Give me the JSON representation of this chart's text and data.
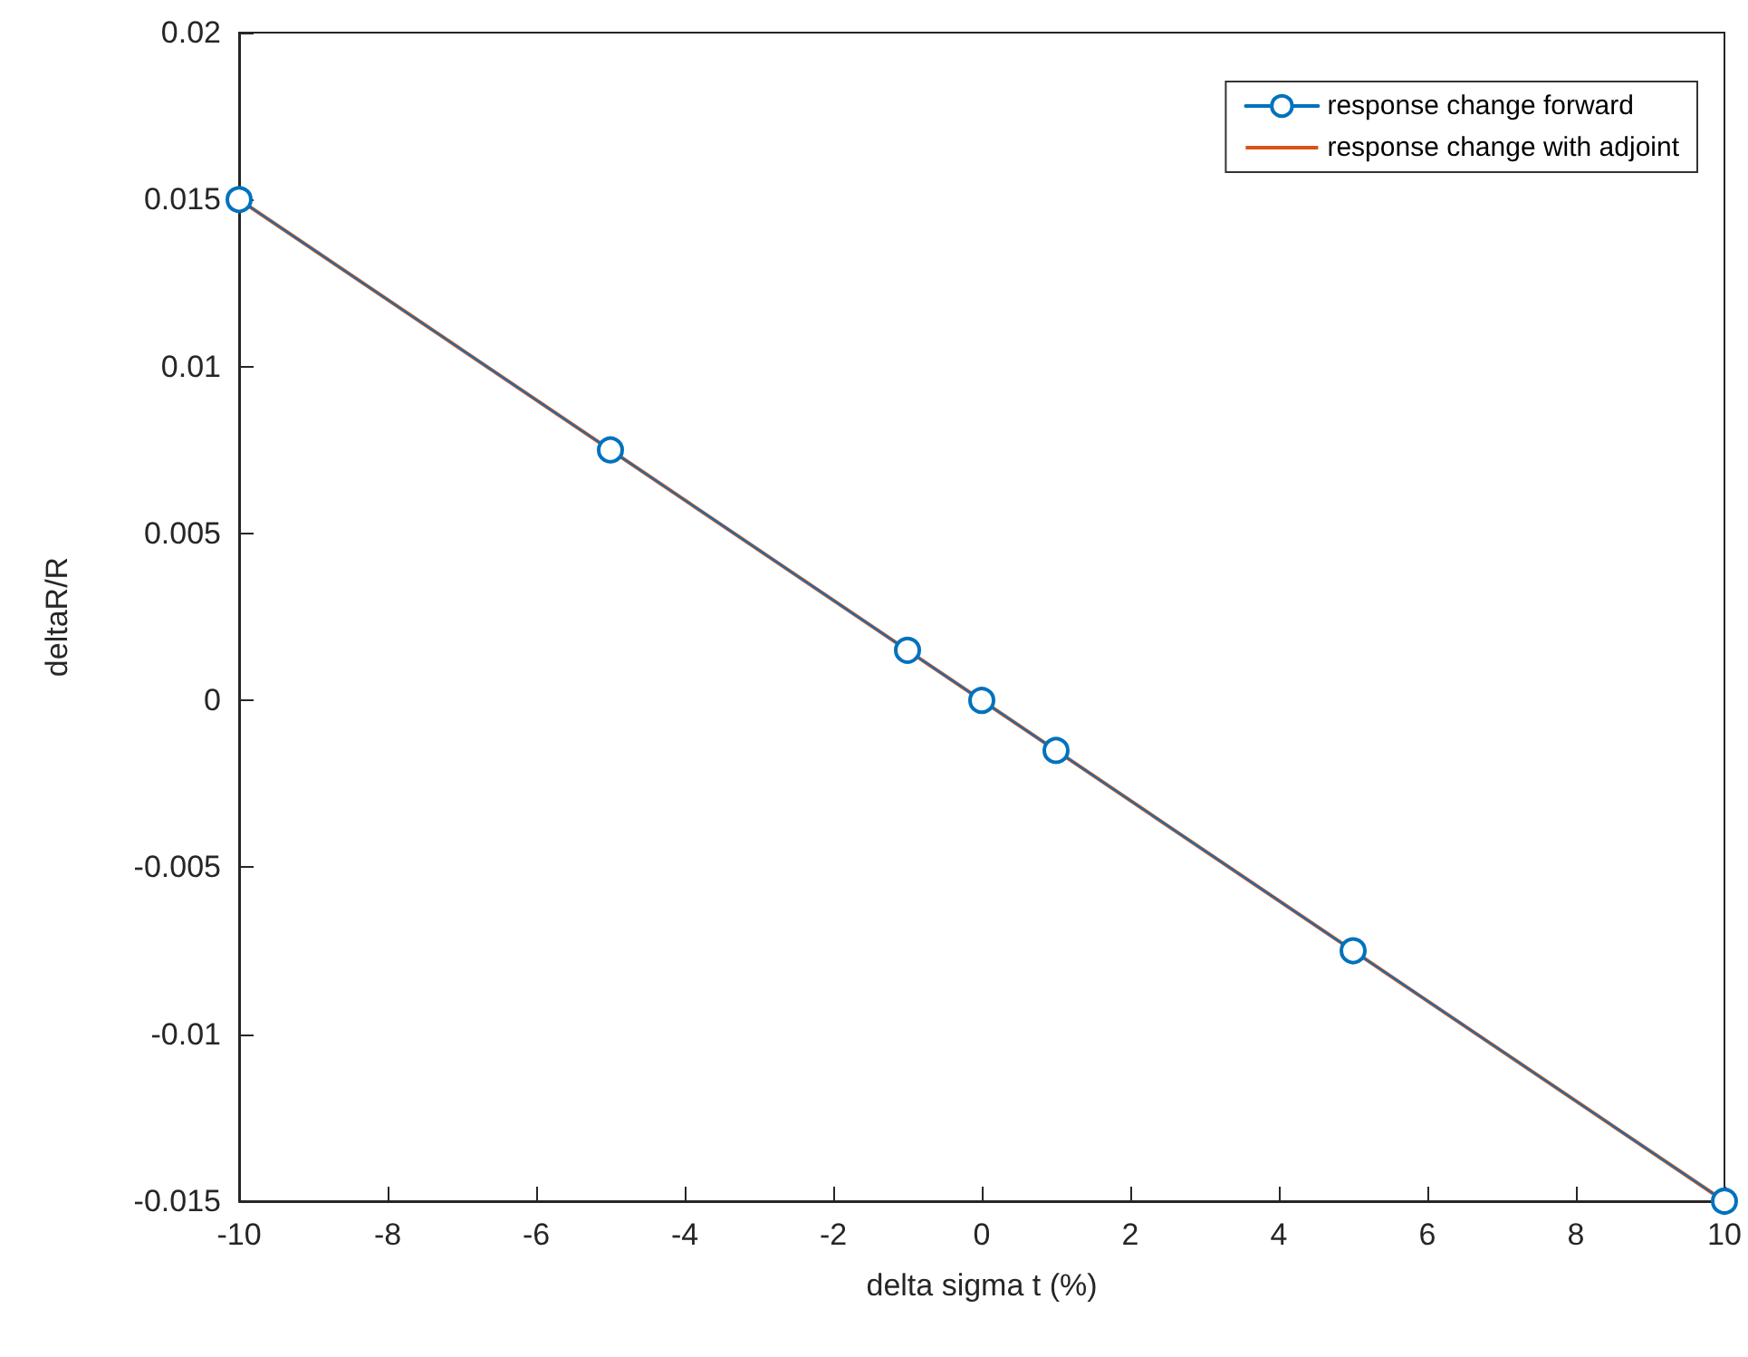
{
  "chart_data": {
    "type": "line",
    "xlabel": "delta sigma t (%)",
    "ylabel": "deltaR/R",
    "xlim": [
      -10,
      10
    ],
    "xticks": [
      -10,
      -8,
      -6,
      -4,
      -2,
      0,
      2,
      4,
      6,
      8,
      10
    ],
    "ylim": [
      -0.015,
      0.02
    ],
    "yticks": [
      -0.015,
      -0.01,
      -0.005,
      0,
      0.005,
      0.01,
      0.015,
      0.02
    ],
    "grid": false,
    "legend": "top right",
    "series": [
      {
        "name": "response change forward",
        "color": "#0072bd",
        "marker": "circle",
        "x": [
          -10,
          -5,
          -1,
          0,
          1,
          5,
          10
        ],
        "values": [
          0.015,
          0.0075,
          0.0015,
          0,
          -0.0015,
          -0.0075,
          -0.015
        ]
      },
      {
        "name": "response change with adjoint",
        "color": "#d95319",
        "marker": "none",
        "x": [
          -10,
          10
        ],
        "values": [
          0.015,
          -0.015
        ]
      }
    ]
  }
}
